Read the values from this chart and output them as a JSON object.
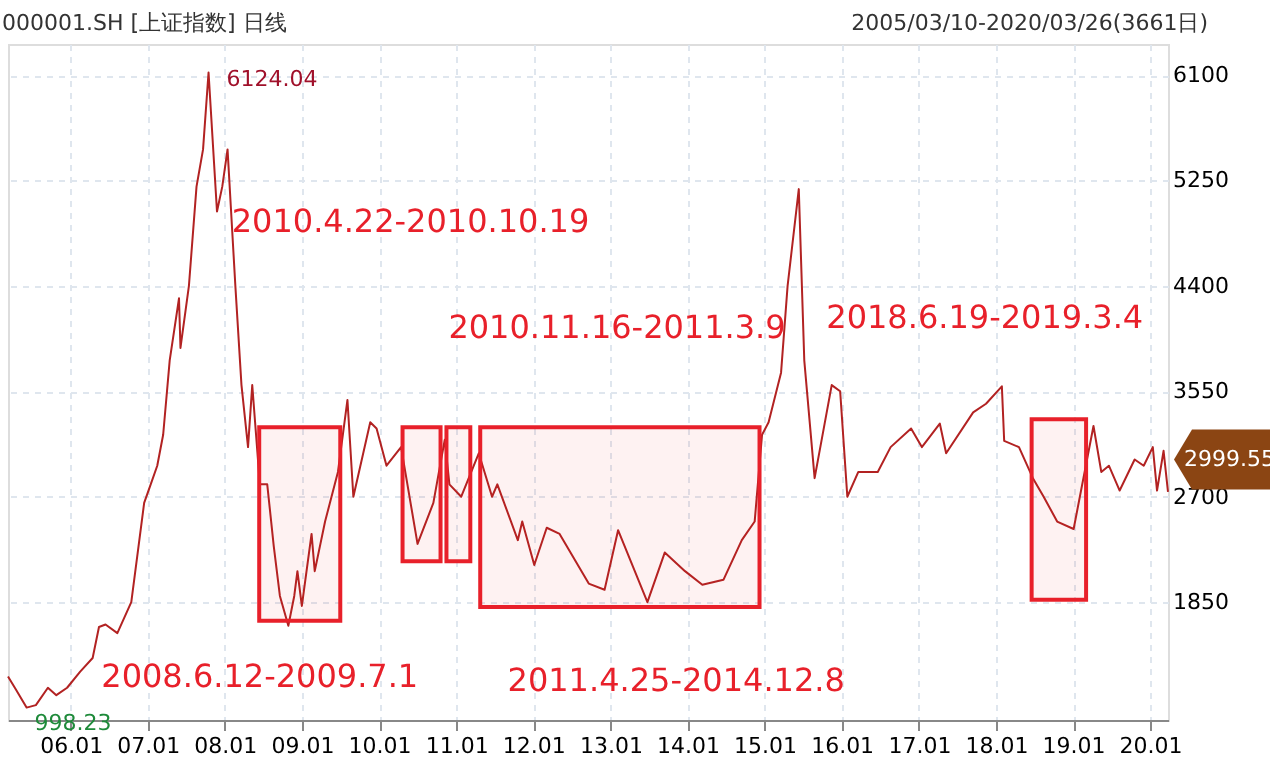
{
  "chart_data": {
    "type": "line",
    "title": "000001.SH [上证指数] 日线",
    "subtitle": "2005/03/10-2020/03/26(3661日)",
    "x": [
      "2005-03-10",
      "2005-04-15",
      "2005-06-06",
      "2005-07-20",
      "2005-09-15",
      "2005-10-25",
      "2005-12-15",
      "2006-02-15",
      "2006-04-15",
      "2006-05-15",
      "2006-06-15",
      "2006-08-10",
      "2006-10-15",
      "2006-12-15",
      "2007-01-15",
      "2007-02-15",
      "2007-03-15",
      "2007-04-15",
      "2007-05-29",
      "2007-06-05",
      "2007-07-15",
      "2007-08-20",
      "2007-09-20",
      "2007-10-16",
      "2007-11-25",
      "2007-12-20",
      "2008-01-14",
      "2008-02-20",
      "2008-03-20",
      "2008-04-20",
      "2008-05-10",
      "2008-06-15",
      "2008-07-20",
      "2008-08-20",
      "2008-09-18",
      "2008-10-28",
      "2008-11-25",
      "2008-12-10",
      "2008-12-31",
      "2009-02-15",
      "2009-03-02",
      "2009-04-20",
      "2009-06-20",
      "2009-08-04",
      "2009-09-01",
      "2009-11-20",
      "2009-12-20",
      "2010-02-05",
      "2010-04-15",
      "2010-07-02",
      "2010-09-15",
      "2010-11-08",
      "2010-11-30",
      "2011-01-25",
      "2011-04-18",
      "2011-06-20",
      "2011-07-15",
      "2011-10-20",
      "2011-11-10",
      "2012-01-06",
      "2012-03-05",
      "2012-05-05",
      "2012-09-20",
      "2012-12-04",
      "2013-02-06",
      "2013-06-25",
      "2013-09-15",
      "2013-12-20",
      "2014-03-12",
      "2014-06-20",
      "2014-09-15",
      "2014-11-15",
      "2014-12-20",
      "2015-01-20",
      "2015-03-20",
      "2015-04-20",
      "2015-06-12",
      "2015-07-08",
      "2015-08-26",
      "2015-11-15",
      "2015-12-25",
      "2016-01-28",
      "2016-03-20",
      "2016-06-20",
      "2016-08-20",
      "2016-11-25",
      "2017-01-15",
      "2017-04-10",
      "2017-05-10",
      "2017-09-15",
      "2017-11-15",
      "2018-01-29",
      "2018-02-09",
      "2018-04-20",
      "2018-06-25",
      "2018-08-15",
      "2018-10-18",
      "2019-01-04",
      "2019-04-08",
      "2019-05-15",
      "2019-06-20",
      "2019-08-10",
      "2019-10-20",
      "2019-12-02",
      "2020-01-14",
      "2020-02-03",
      "2020-03-05",
      "2020-03-26"
    ],
    "series": [
      {
        "color": "#b22222",
        "values": [
          1250,
          1150,
          1000,
          1020,
          1160,
          1100,
          1160,
          1290,
          1400,
          1650,
          1670,
          1600,
          1850,
          2650,
          2800,
          2950,
          3200,
          3800,
          4300,
          3900,
          4400,
          5200,
          5500,
          6120,
          5000,
          5200,
          5500,
          4400,
          3600,
          3100,
          3600,
          2800,
          2800,
          2300,
          1900,
          1660,
          1900,
          2100,
          1820,
          2400,
          2100,
          2500,
          2900,
          3480,
          2700,
          3300,
          3250,
          2950,
          3100,
          2320,
          2650,
          3160,
          2800,
          2700,
          3050,
          2700,
          2800,
          2350,
          2500,
          2150,
          2450,
          2400,
          2000,
          1950,
          2430,
          1850,
          2250,
          2100,
          1990,
          2030,
          2350,
          2500,
          3200,
          3300,
          3700,
          4400,
          5180,
          3800,
          2850,
          3600,
          3550,
          2700,
          2900,
          2900,
          3100,
          3250,
          3100,
          3290,
          3050,
          3380,
          3450,
          3590,
          3150,
          3100,
          2850,
          2700,
          2500,
          2440,
          3270,
          2900,
          2950,
          2750,
          3000,
          2950,
          3100,
          2750,
          3070,
          2740
        ]
      }
    ],
    "xlim": [
      "2005-03-10",
      "2020-03-26"
    ],
    "xticks": [
      {
        "value": "2006-01-01",
        "label": "06.01"
      },
      {
        "value": "2007-01-01",
        "label": "07.01"
      },
      {
        "value": "2008-01-01",
        "label": "08.01"
      },
      {
        "value": "2009-01-01",
        "label": "09.01"
      },
      {
        "value": "2010-01-01",
        "label": "10.01"
      },
      {
        "value": "2011-01-01",
        "label": "11.01"
      },
      {
        "value": "2012-01-01",
        "label": "12.01"
      },
      {
        "value": "2013-01-01",
        "label": "13.01"
      },
      {
        "value": "2014-01-01",
        "label": "14.01"
      },
      {
        "value": "2015-01-01",
        "label": "15.01"
      },
      {
        "value": "2016-01-01",
        "label": "16.01"
      },
      {
        "value": "2017-01-01",
        "label": "17.01"
      },
      {
        "value": "2018-01-01",
        "label": "18.01"
      },
      {
        "value": "2019-01-01",
        "label": "19.01"
      },
      {
        "value": "2020-01-01",
        "label": "20.01"
      }
    ],
    "ylim": [
      900,
      6350
    ],
    "yticks": [
      1850,
      2700,
      3550,
      4400,
      5250,
      6100
    ],
    "bands": [
      {
        "axis": "x",
        "from": "2008-06-12",
        "to": "2009-07-01",
        "label": "2008.6.12-2009.7.1",
        "color": "#e8202a"
      },
      {
        "axis": "x",
        "from": "2010-04-22",
        "to": "2010-10-19",
        "label": "2010.4.22-2010.10.19",
        "color": "#e8202a"
      },
      {
        "axis": "x",
        "from": "2010-11-16",
        "to": "2011-03-09",
        "label": "2010.11.16-2011.3.9",
        "color": "#e8202a"
      },
      {
        "axis": "x",
        "from": "2011-04-25",
        "to": "2014-12-08",
        "label": "2011.4.25-2014.12.8",
        "color": "#e8202a"
      },
      {
        "axis": "x",
        "from": "2018-06-19",
        "to": "2019-03-04",
        "label": "2018.6.19-2019.3.4",
        "color": "#e8202a"
      }
    ],
    "annotations": [
      {
        "text": "6124.04",
        "x": "2007-10-16",
        "y": 6124.04
      },
      {
        "text": "998.23",
        "x": "2005-06-06",
        "y": 998.23
      },
      {
        "text": "2999.55",
        "x": "2020-03-26",
        "y": 2999.55
      }
    ],
    "grid": true,
    "marker": "none",
    "line_style": "solid"
  }
}
